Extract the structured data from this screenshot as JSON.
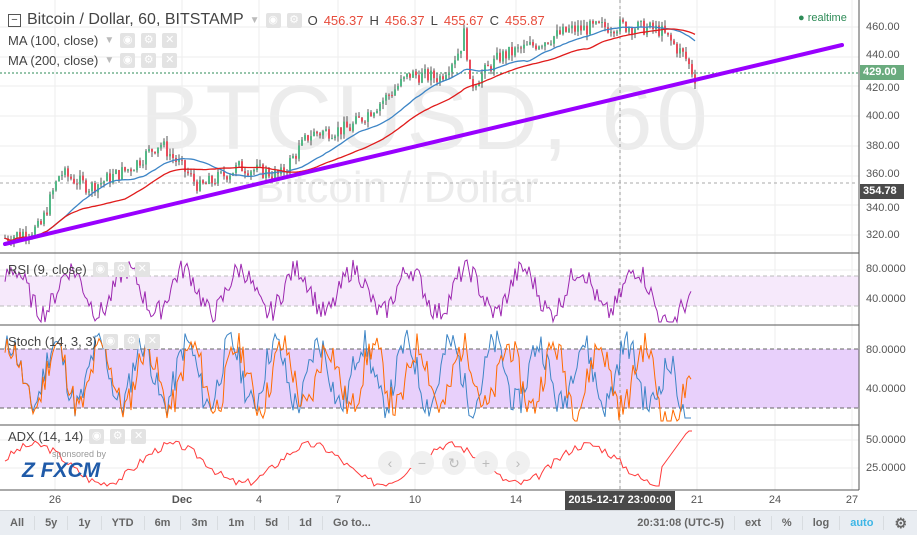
{
  "header": {
    "symbol": "Bitcoin / Dollar, 60, BITSTAMP",
    "o_label": "O",
    "o": "456.37",
    "h_label": "H",
    "h": "456.37",
    "l_label": "L",
    "l": "455.67",
    "c_label": "C",
    "c": "455.87"
  },
  "indicators": {
    "ma100": "MA (100, close)",
    "ma200": "MA (200, close)",
    "rsi": "RSI (9, close)",
    "stoch": "Stoch (14, 3, 3)",
    "adx": "ADX (14, 14)"
  },
  "watermark": {
    "symbol": "BTCUSD, 60",
    "name": "Bitcoin / Dollar"
  },
  "realtime": "realtime",
  "price_axis": [
    "460.00",
    "440.00",
    "420.00",
    "400.00",
    "380.00",
    "360.00",
    "340.00",
    "320.00"
  ],
  "last_price": "429.00",
  "crosshair_price": "354.78",
  "rsi_axis": [
    "80.0000",
    "40.0000"
  ],
  "stoch_axis": [
    "80.0000",
    "40.0000"
  ],
  "adx_axis": [
    "50.0000",
    "25.0000"
  ],
  "time_axis": [
    "26",
    "Dec",
    "4",
    "7",
    "10",
    "14",
    "21",
    "24",
    "27"
  ],
  "crosshair_time": "2015-12-17 23:00:00",
  "sponsor": {
    "by": "sponsored by",
    "brand": "FXCM"
  },
  "bottom_bar": {
    "ranges": [
      "All",
      "5y",
      "1y",
      "YTD",
      "6m",
      "3m",
      "1m",
      "5d",
      "1d",
      "Go to..."
    ],
    "clock": "20:31:08 (UTC-5)",
    "ext": "ext",
    "pct": "%",
    "log": "log",
    "auto": "auto"
  },
  "colors": {
    "ma100": "#3d85c6",
    "ma200": "#e01b1b",
    "trendline": "#9900ff",
    "rsi": "#9c27b0",
    "adx": "#ff3b3b",
    "stoch_k": "#3d85c6",
    "stoch_d": "#ff6a00"
  }
}
